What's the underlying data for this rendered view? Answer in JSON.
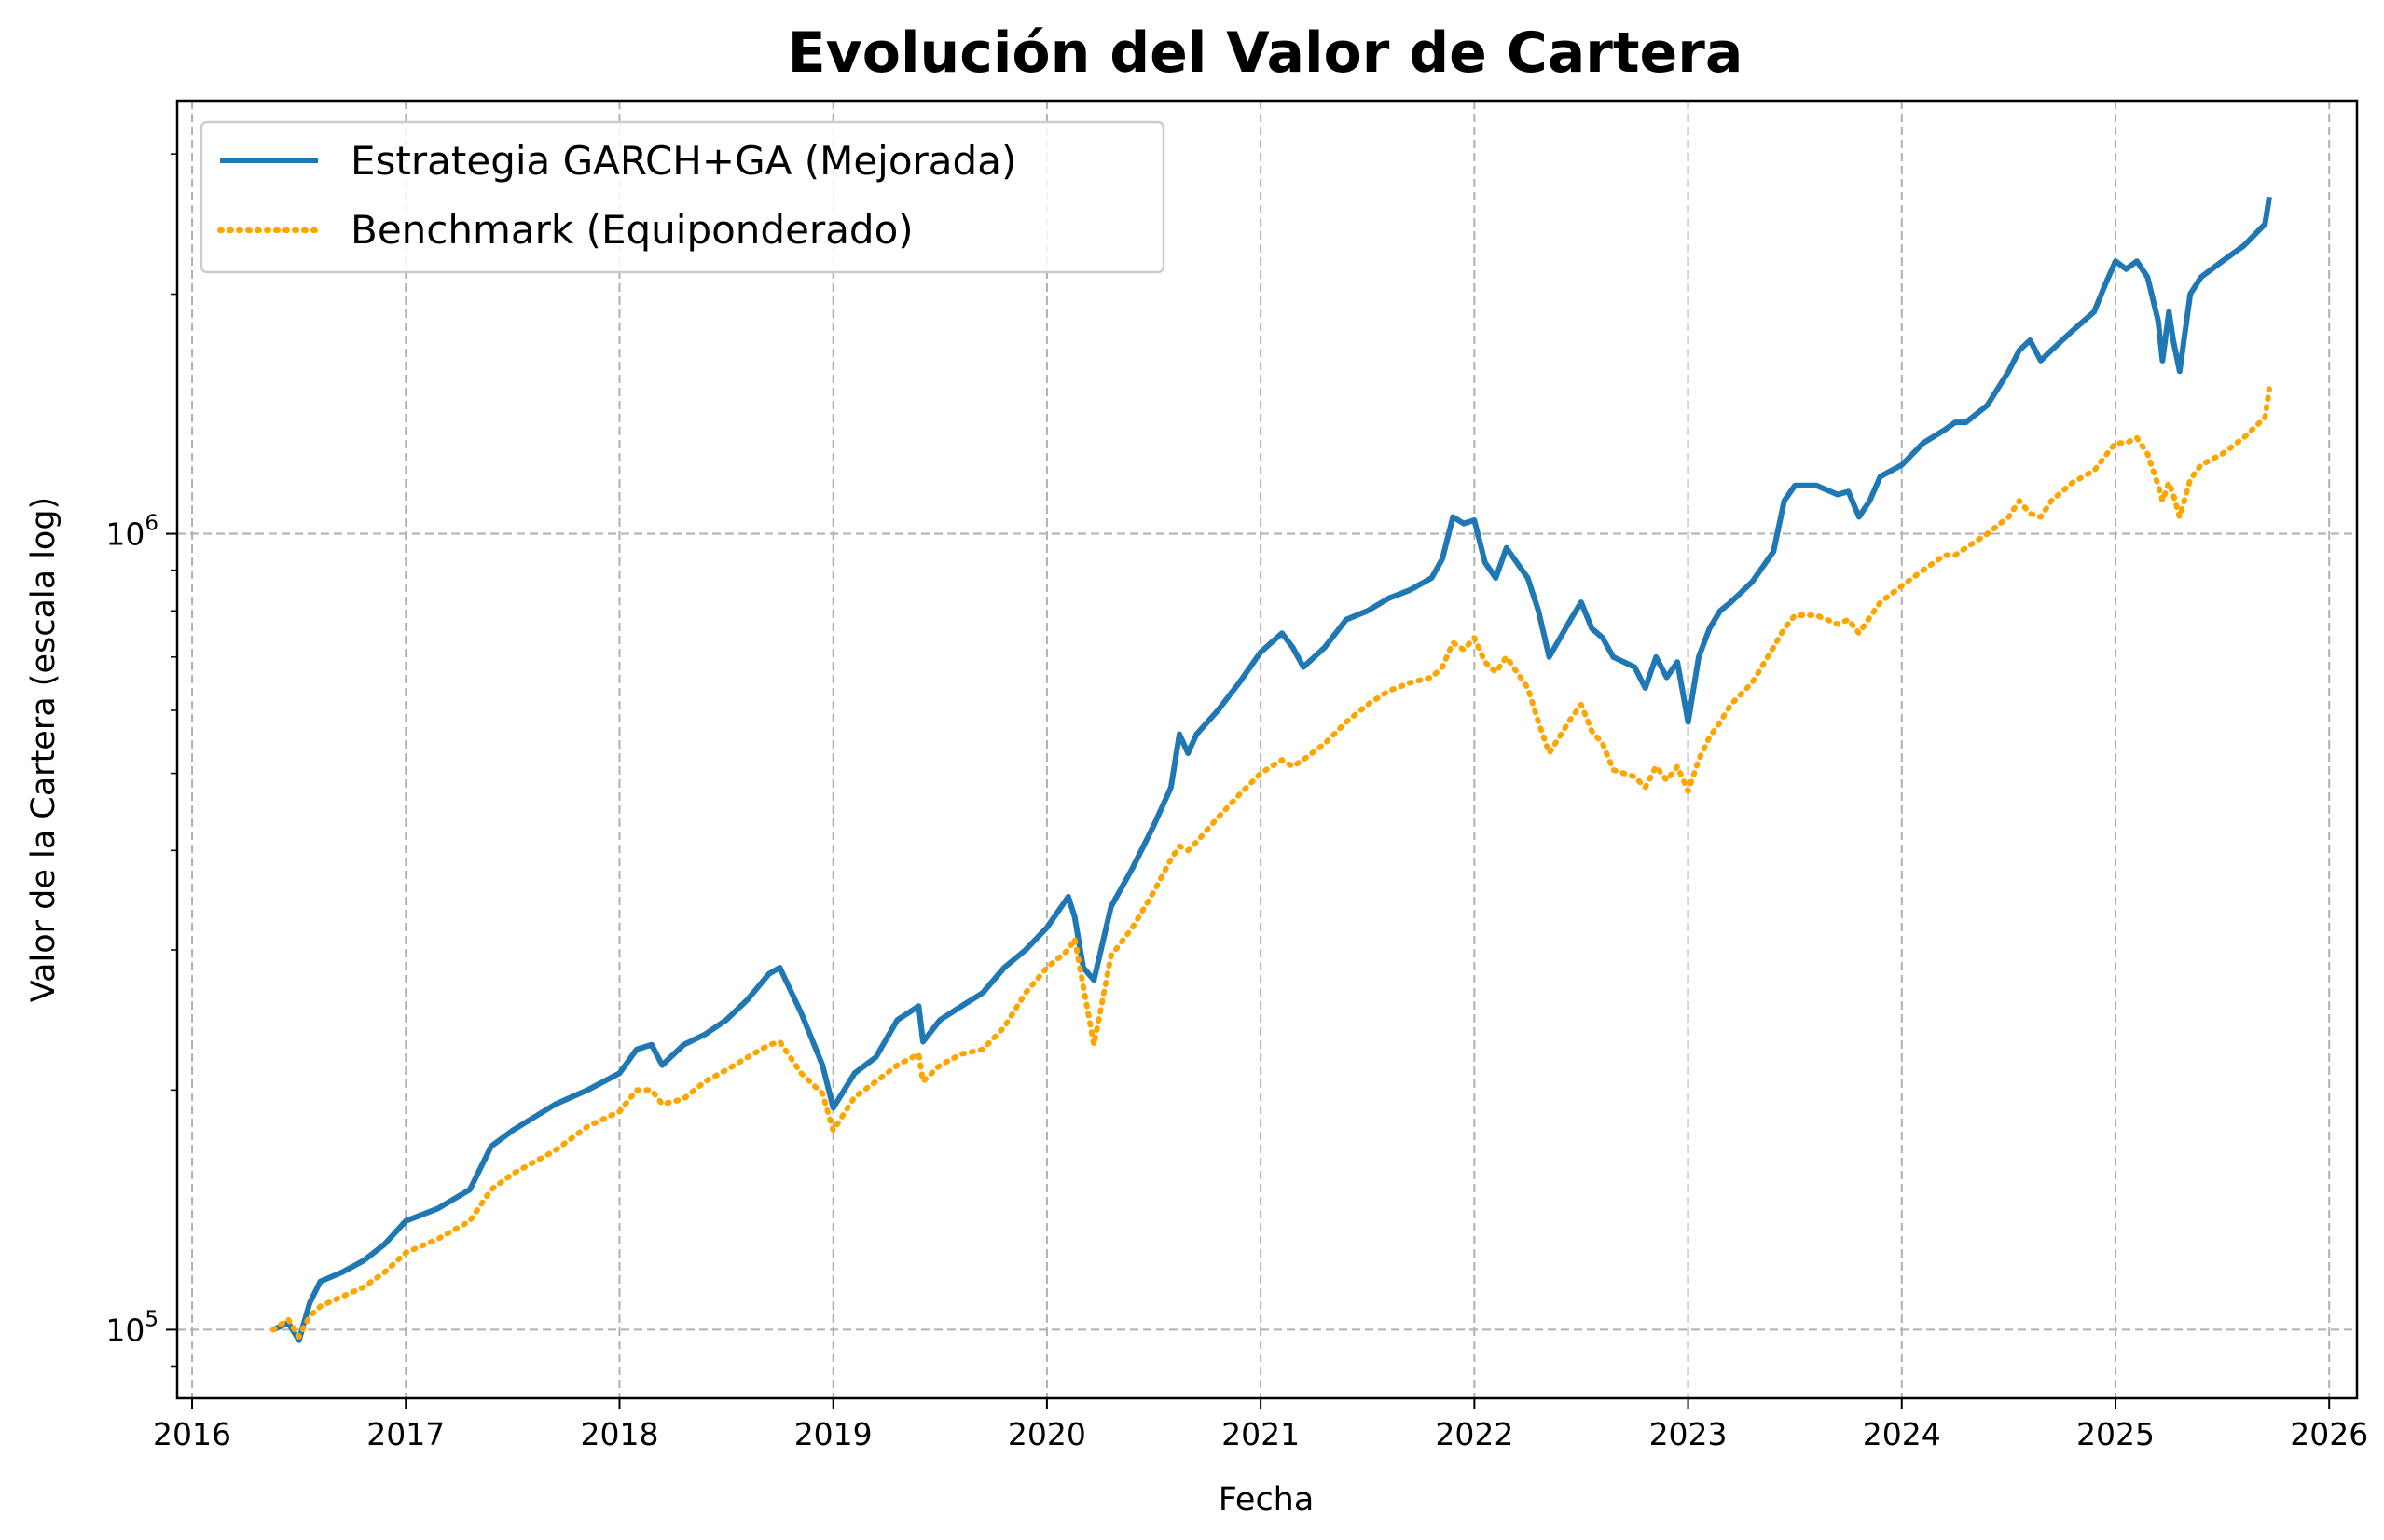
{
  "chart_data": {
    "type": "line",
    "title": "Evolución del Valor de Cartera",
    "xlabel": "Fecha",
    "ylabel": "Valor de la Cartera (escala log)",
    "xlim": [
      2015.93,
      2026.13
    ],
    "ylim": [
      82000,
      3500000
    ],
    "yscale": "log",
    "grid": true,
    "legend_position": "upper-left",
    "x_ticks": [
      2016,
      2017,
      2018,
      2019,
      2020,
      2021,
      2022,
      2023,
      2024,
      2025,
      2026
    ],
    "x_tick_labels": [
      "2016",
      "2017",
      "2018",
      "2019",
      "2020",
      "2021",
      "2022",
      "2023",
      "2024",
      "2025",
      "2026"
    ],
    "y_ticks": [
      {
        "base": "10",
        "exp": "5",
        "value": 100000
      },
      {
        "base": "10",
        "exp": "6",
        "value": 1000000
      }
    ],
    "series": [
      {
        "name": "Estrategia GARCH+GA (Mejorada)",
        "color": "#1f77b4",
        "style": "solid",
        "x": [
          2016.38,
          2016.45,
          2016.5,
          2016.55,
          2016.6,
          2016.7,
          2016.8,
          2016.9,
          2017.0,
          2017.15,
          2017.3,
          2017.4,
          2017.5,
          2017.7,
          2017.85,
          2018.0,
          2018.08,
          2018.15,
          2018.2,
          2018.3,
          2018.4,
          2018.5,
          2018.6,
          2018.7,
          2018.75,
          2018.85,
          2018.95,
          2019.0,
          2019.1,
          2019.2,
          2019.3,
          2019.4,
          2019.42,
          2019.5,
          2019.6,
          2019.7,
          2019.8,
          2019.9,
          2020.0,
          2020.1,
          2020.13,
          2020.17,
          2020.22,
          2020.3,
          2020.4,
          2020.5,
          2020.58,
          2020.62,
          2020.66,
          2020.7,
          2020.8,
          2020.9,
          2021.0,
          2021.1,
          2021.15,
          2021.2,
          2021.3,
          2021.4,
          2021.5,
          2021.6,
          2021.7,
          2021.8,
          2021.85,
          2021.9,
          2021.95,
          2022.0,
          2022.05,
          2022.1,
          2022.15,
          2022.25,
          2022.3,
          2022.35,
          2022.45,
          2022.5,
          2022.55,
          2022.6,
          2022.65,
          2022.75,
          2022.8,
          2022.85,
          2022.9,
          2022.95,
          2023.0,
          2023.05,
          2023.1,
          2023.15,
          2023.2,
          2023.3,
          2023.4,
          2023.45,
          2023.5,
          2023.6,
          2023.7,
          2023.75,
          2023.8,
          2023.85,
          2023.9,
          2024.0,
          2024.1,
          2024.2,
          2024.25,
          2024.3,
          2024.4,
          2024.5,
          2024.55,
          2024.6,
          2024.65,
          2024.7,
          2024.8,
          2024.9,
          2024.95,
          2025.0,
          2025.05,
          2025.1,
          2025.15,
          2025.2,
          2025.22,
          2025.25,
          2025.27,
          2025.3,
          2025.35,
          2025.4,
          2025.5,
          2025.6,
          2025.7,
          2025.72
        ],
        "y": [
          100000,
          102000,
          97000,
          108000,
          115000,
          118000,
          122000,
          128000,
          137000,
          142000,
          150000,
          170000,
          178000,
          192000,
          200000,
          210000,
          225000,
          228000,
          215000,
          228000,
          235000,
          245000,
          260000,
          280000,
          285000,
          250000,
          215000,
          190000,
          210000,
          220000,
          245000,
          255000,
          230000,
          245000,
          255000,
          265000,
          285000,
          300000,
          320000,
          350000,
          330000,
          285000,
          275000,
          340000,
          380000,
          430000,
          480000,
          560000,
          530000,
          560000,
          600000,
          650000,
          710000,
          750000,
          720000,
          680000,
          720000,
          780000,
          800000,
          830000,
          850000,
          880000,
          930000,
          1050000,
          1030000,
          1040000,
          920000,
          880000,
          960000,
          880000,
          800000,
          700000,
          780000,
          820000,
          760000,
          740000,
          700000,
          680000,
          640000,
          700000,
          660000,
          690000,
          580000,
          700000,
          760000,
          800000,
          820000,
          870000,
          950000,
          1100000,
          1150000,
          1150000,
          1120000,
          1130000,
          1050000,
          1100000,
          1180000,
          1220000,
          1300000,
          1350000,
          1380000,
          1380000,
          1450000,
          1600000,
          1700000,
          1750000,
          1650000,
          1700000,
          1800000,
          1900000,
          2050000,
          2200000,
          2150000,
          2200000,
          2100000,
          1850000,
          1650000,
          1900000,
          1750000,
          1600000,
          2000000,
          2100000,
          2200000,
          2300000,
          2450000,
          2650000
        ],
        "stroke_width": 6
      },
      {
        "name": "Benchmark (Equiponderado)",
        "color": "#ffa500",
        "style": "dotted",
        "x": [
          2016.38,
          2016.45,
          2016.5,
          2016.55,
          2016.6,
          2016.7,
          2016.8,
          2016.9,
          2017.0,
          2017.15,
          2017.3,
          2017.4,
          2017.5,
          2017.7,
          2017.85,
          2018.0,
          2018.08,
          2018.15,
          2018.2,
          2018.3,
          2018.4,
          2018.5,
          2018.6,
          2018.7,
          2018.75,
          2018.85,
          2018.95,
          2019.0,
          2019.1,
          2019.2,
          2019.3,
          2019.4,
          2019.42,
          2019.5,
          2019.6,
          2019.7,
          2019.8,
          2019.9,
          2020.0,
          2020.1,
          2020.13,
          2020.17,
          2020.22,
          2020.3,
          2020.4,
          2020.5,
          2020.58,
          2020.62,
          2020.66,
          2020.7,
          2020.8,
          2020.9,
          2021.0,
          2021.1,
          2021.15,
          2021.2,
          2021.3,
          2021.4,
          2021.5,
          2021.6,
          2021.7,
          2021.8,
          2021.85,
          2021.9,
          2021.95,
          2022.0,
          2022.05,
          2022.1,
          2022.15,
          2022.25,
          2022.3,
          2022.35,
          2022.45,
          2022.5,
          2022.55,
          2022.6,
          2022.65,
          2022.75,
          2022.8,
          2022.85,
          2022.9,
          2022.95,
          2023.0,
          2023.05,
          2023.1,
          2023.15,
          2023.2,
          2023.3,
          2023.4,
          2023.45,
          2023.5,
          2023.6,
          2023.7,
          2023.75,
          2023.8,
          2023.85,
          2023.9,
          2024.0,
          2024.1,
          2024.2,
          2024.25,
          2024.3,
          2024.4,
          2024.5,
          2024.55,
          2024.6,
          2024.65,
          2024.7,
          2024.8,
          2024.9,
          2024.95,
          2025.0,
          2025.05,
          2025.1,
          2025.15,
          2025.2,
          2025.22,
          2025.25,
          2025.27,
          2025.3,
          2025.35,
          2025.4,
          2025.5,
          2025.6,
          2025.7,
          2025.72
        ],
        "y": [
          100000,
          103000,
          98000,
          104000,
          107000,
          110000,
          113000,
          118000,
          125000,
          130000,
          137000,
          150000,
          157000,
          168000,
          180000,
          188000,
          200000,
          200000,
          192000,
          195000,
          205000,
          212000,
          220000,
          228000,
          230000,
          210000,
          198000,
          178000,
          196000,
          205000,
          215000,
          222000,
          205000,
          215000,
          222000,
          225000,
          240000,
          265000,
          285000,
          300000,
          310000,
          270000,
          228000,
          295000,
          320000,
          355000,
          390000,
          405000,
          400000,
          410000,
          440000,
          470000,
          500000,
          520000,
          510000,
          520000,
          545000,
          580000,
          610000,
          635000,
          650000,
          660000,
          680000,
          730000,
          715000,
          740000,
          690000,
          670000,
          700000,
          640000,
          580000,
          530000,
          585000,
          610000,
          565000,
          545000,
          505000,
          495000,
          480000,
          510000,
          490000,
          510000,
          475000,
          520000,
          555000,
          580000,
          610000,
          650000,
          720000,
          760000,
          790000,
          790000,
          770000,
          780000,
          750000,
          785000,
          820000,
          860000,
          900000,
          940000,
          940000,
          960000,
          1000000,
          1050000,
          1100000,
          1060000,
          1050000,
          1100000,
          1160000,
          1200000,
          1250000,
          1300000,
          1300000,
          1320000,
          1260000,
          1150000,
          1100000,
          1160000,
          1120000,
          1050000,
          1170000,
          1220000,
          1260000,
          1320000,
          1400000,
          1520000
        ],
        "stroke_width": 6
      }
    ]
  }
}
